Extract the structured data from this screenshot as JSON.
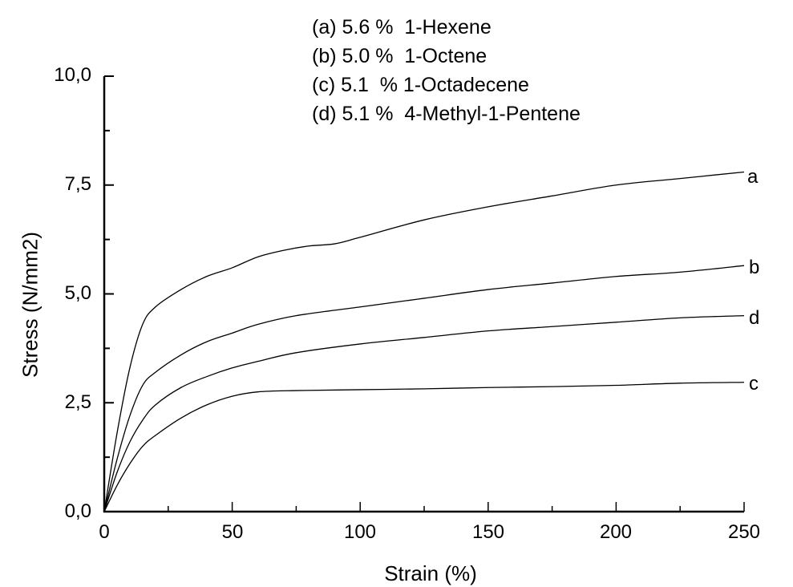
{
  "legend": {
    "items": [
      "(a) 5.6 %  1-Hexene",
      "(b) 5.0 %  1-Octene",
      "(c) 5.1  % 1-Octadecene",
      "(d) 5.1 %  4-Methyl-1-Pentene"
    ]
  },
  "axes": {
    "xlabel": "Strain (%)",
    "ylabel": "Stress (N/mm2)",
    "xticks": [
      "0",
      "50",
      "100",
      "150",
      "200",
      "250"
    ],
    "yticks": [
      "0,0",
      "2,5",
      "5,0",
      "7,5",
      "10,0"
    ]
  },
  "end_labels": {
    "a": "a",
    "b": "b",
    "c": "c",
    "d": "d"
  },
  "colors": {
    "line": "#000000",
    "background": "#ffffff"
  },
  "chart_data": {
    "type": "line",
    "title": "",
    "xlabel": "Strain (%)",
    "ylabel": "Stress (N/mm2)",
    "xlim": [
      0,
      250
    ],
    "ylim": [
      0,
      10
    ],
    "xticks": [
      0,
      50,
      100,
      150,
      200,
      250
    ],
    "yticks": [
      0.0,
      2.5,
      5.0,
      7.5,
      10.0
    ],
    "grid": false,
    "legend_position": "top",
    "series": [
      {
        "name": "(a) 5.6 % 1-Hexene",
        "label": "a",
        "x": [
          0,
          5,
          10,
          15,
          20,
          30,
          40,
          50,
          60,
          70,
          80,
          90,
          100,
          125,
          150,
          175,
          200,
          225,
          250
        ],
        "values": [
          0,
          1.8,
          3.3,
          4.3,
          4.7,
          5.1,
          5.4,
          5.6,
          5.85,
          6.0,
          6.1,
          6.15,
          6.3,
          6.7,
          7.0,
          7.25,
          7.5,
          7.65,
          7.8
        ]
      },
      {
        "name": "(b) 5.0 % 1-Octene",
        "label": "b",
        "x": [
          0,
          5,
          10,
          15,
          20,
          30,
          40,
          50,
          60,
          75,
          100,
          125,
          150,
          175,
          200,
          225,
          250
        ],
        "values": [
          0,
          1.2,
          2.2,
          2.9,
          3.2,
          3.6,
          3.9,
          4.1,
          4.3,
          4.5,
          4.7,
          4.9,
          5.1,
          5.25,
          5.4,
          5.5,
          5.65
        ]
      },
      {
        "name": "(c) 5.1 % 1-Octadecene",
        "label": "c",
        "x": [
          0,
          5,
          10,
          15,
          20,
          30,
          40,
          50,
          60,
          75,
          100,
          125,
          150,
          175,
          200,
          225,
          250
        ],
        "values": [
          0,
          0.6,
          1.1,
          1.5,
          1.75,
          2.15,
          2.45,
          2.65,
          2.75,
          2.78,
          2.8,
          2.82,
          2.85,
          2.87,
          2.9,
          2.95,
          2.97
        ]
      },
      {
        "name": "(d) 5.1 % 4-Methyl-1-Pentene",
        "label": "d",
        "x": [
          0,
          5,
          10,
          15,
          20,
          30,
          40,
          50,
          60,
          75,
          100,
          125,
          150,
          175,
          200,
          225,
          250
        ],
        "values": [
          0,
          0.9,
          1.6,
          2.1,
          2.45,
          2.85,
          3.1,
          3.3,
          3.45,
          3.65,
          3.85,
          4.0,
          4.15,
          4.25,
          4.35,
          4.45,
          4.5
        ]
      }
    ]
  }
}
